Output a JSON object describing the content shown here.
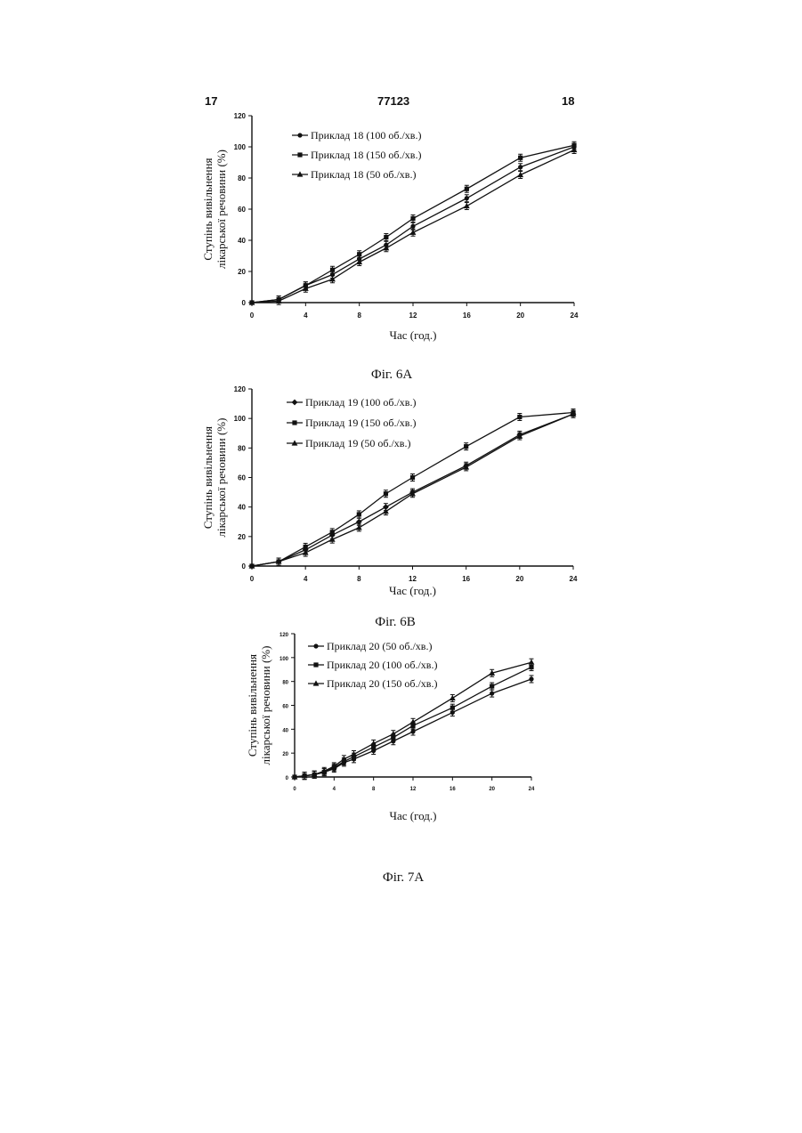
{
  "header": {
    "left": "17",
    "center": "77123",
    "right": "18"
  },
  "chart_data": [
    {
      "type": "line",
      "caption": "Фіг. 6А",
      "xlabel": "Час (год.)",
      "ylabel": [
        "Ступінь вивільнення",
        "лікарської речовини (%)"
      ],
      "xlim": [
        0,
        24
      ],
      "ylim": [
        0,
        120
      ],
      "xticks": [
        0,
        4,
        8,
        12,
        16,
        20,
        24
      ],
      "yticks": [
        0,
        20,
        40,
        60,
        80,
        100,
        120
      ],
      "legend_position": "top-left",
      "x": [
        0,
        2,
        4,
        6,
        8,
        10,
        12,
        16,
        20,
        24
      ],
      "series": [
        {
          "name": "Приклад 18 (100 об./хв.)",
          "marker": "circle",
          "values": [
            0,
            2,
            11,
            18,
            28,
            37,
            49,
            67,
            87,
            100
          ]
        },
        {
          "name": "Приклад 18 (150 об./хв.)",
          "marker": "square",
          "values": [
            0,
            2,
            11,
            21,
            31,
            42,
            54,
            73,
            93,
            101
          ]
        },
        {
          "name": "Приклад 18 (50 об./хв.)",
          "marker": "triangle",
          "values": [
            0,
            1,
            9,
            15,
            26,
            35,
            45,
            62,
            82,
            98
          ]
        }
      ]
    },
    {
      "type": "line",
      "caption": "Фіг. 6В",
      "xlabel": "Час (год.)",
      "ylabel": [
        "Ступінь вивільнення",
        "лікарської речовини (%)"
      ],
      "xlim": [
        0,
        24
      ],
      "ylim": [
        0,
        120
      ],
      "xticks": [
        0,
        4,
        8,
        12,
        16,
        20,
        24
      ],
      "yticks": [
        0,
        20,
        40,
        60,
        80,
        100,
        120
      ],
      "legend_position": "top-left",
      "x": [
        0,
        2,
        4,
        6,
        8,
        10,
        12,
        16,
        20,
        24
      ],
      "series": [
        {
          "name": "Приклад 19 (100 об./хв.)",
          "marker": "diamond",
          "values": [
            0,
            3,
            11,
            21,
            30,
            40,
            50,
            68,
            89,
            103
          ]
        },
        {
          "name": "Приклад 19 (150 об./хв.)",
          "marker": "square",
          "values": [
            0,
            3,
            13,
            23,
            35,
            49,
            60,
            81,
            101,
            104
          ]
        },
        {
          "name": "Приклад 19 (50 об./хв.)",
          "marker": "triangle",
          "values": [
            0,
            3,
            9,
            18,
            26,
            37,
            49,
            67,
            88,
            103
          ]
        }
      ]
    },
    {
      "type": "line",
      "caption": "Фіг. 7А",
      "xlabel": "Час (год.)",
      "ylabel": [
        "Ступінь вивільнення",
        "лікарської речовини (%)"
      ],
      "xlim": [
        0,
        24
      ],
      "ylim": [
        0,
        120
      ],
      "xticks": [
        0,
        4,
        8,
        12,
        16,
        20,
        24
      ],
      "yticks": [
        0,
        20,
        40,
        60,
        80,
        100,
        120
      ],
      "legend_position": "top-left",
      "x": [
        0,
        1,
        2,
        3,
        4,
        5,
        6,
        8,
        10,
        12,
        16,
        20,
        24
      ],
      "series": [
        {
          "name": "Приклад 20 (50 об./хв.)",
          "marker": "circle",
          "values": [
            0,
            1,
            2,
            4,
            7,
            12,
            15,
            22,
            30,
            38,
            54,
            70,
            82
          ]
        },
        {
          "name": "Приклад 20 (100 об./хв.)",
          "marker": "square",
          "values": [
            0,
            1,
            2,
            4,
            8,
            13,
            17,
            25,
            33,
            43,
            58,
            76,
            92
          ]
        },
        {
          "name": "Приклад 20 (150 об./хв.)",
          "marker": "triangle",
          "values": [
            0,
            1,
            2,
            5,
            9,
            15,
            19,
            28,
            36,
            46,
            66,
            87,
            96
          ]
        }
      ]
    }
  ]
}
